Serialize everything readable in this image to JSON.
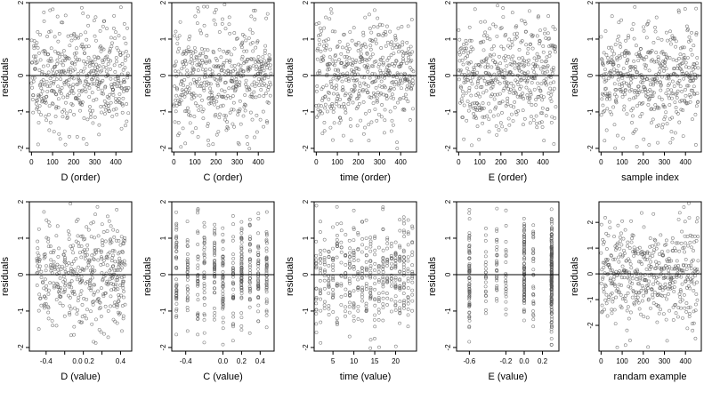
{
  "chart_data": [
    {
      "type": "scatter",
      "panel": "D (order)",
      "xlabel": "D (order)",
      "ylabel": "residuals",
      "xlim": [
        -10,
        475
      ],
      "ylim": [
        -2.1,
        2.0
      ],
      "xticks": [
        0,
        100,
        200,
        300,
        400
      ],
      "yticks": [
        -2,
        -1,
        0,
        1,
        2
      ],
      "hline": 0,
      "x_kind": "order",
      "n": 470,
      "seed": 11,
      "noise_sd": 0.75
    },
    {
      "type": "scatter",
      "panel": "C (order)",
      "xlabel": "C (order)",
      "ylabel": "residuals",
      "xlim": [
        -10,
        475
      ],
      "ylim": [
        -2.1,
        2.0
      ],
      "xticks": [
        0,
        100,
        200,
        300,
        400
      ],
      "yticks": [
        -2,
        -1,
        0,
        1,
        2
      ],
      "hline": 0,
      "x_kind": "order",
      "n": 470,
      "seed": 23,
      "noise_sd": 0.75
    },
    {
      "type": "scatter",
      "panel": "time (order)",
      "xlabel": "time (order)",
      "ylabel": "residuals",
      "xlim": [
        -10,
        475
      ],
      "ylim": [
        -2.1,
        2.0
      ],
      "xticks": [
        0,
        100,
        200,
        300,
        400
      ],
      "yticks": [
        -2,
        -1,
        0,
        1,
        2
      ],
      "hline": 0,
      "x_kind": "order",
      "n": 470,
      "seed": 37,
      "noise_sd": 0.75
    },
    {
      "type": "scatter",
      "panel": "E (order)",
      "xlabel": "E (order)",
      "ylabel": "residuals",
      "xlim": [
        -10,
        475
      ],
      "ylim": [
        -2.1,
        2.0
      ],
      "xticks": [
        0,
        100,
        200,
        300,
        400
      ],
      "yticks": [
        -2,
        -1,
        0,
        1,
        2
      ],
      "hline": 0,
      "x_kind": "order",
      "n": 470,
      "seed": 41,
      "noise_sd": 0.75
    },
    {
      "type": "scatter",
      "panel": "sample index",
      "xlabel": "sample index",
      "ylabel": "residuals",
      "xlim": [
        -10,
        475
      ],
      "ylim": [
        -2.1,
        2.0
      ],
      "xticks": [
        0,
        100,
        200,
        300,
        400
      ],
      "yticks": [
        -2,
        -1,
        0,
        1,
        2
      ],
      "hline": 0,
      "x_kind": "order",
      "n": 470,
      "seed": 53,
      "noise_sd": 0.75
    },
    {
      "type": "scatter",
      "panel": "D (value)",
      "xlabel": "D (value)",
      "ylabel": "residuals",
      "xlim": [
        -0.58,
        0.52
      ],
      "ylim": [
        -2.1,
        2.0
      ],
      "xticks": [
        -0.4,
        -0.2,
        0.0,
        0.2,
        0.4
      ],
      "xticklabels": [
        "-0.4",
        "",
        "0.0 0.2",
        "",
        "0.4"
      ],
      "yticks": [
        -2,
        -1,
        0,
        1,
        2
      ],
      "hline": 0,
      "x_kind": "continuous",
      "x_range": [
        -0.5,
        0.45
      ],
      "n": 420,
      "seed": 61,
      "noise_sd": 0.75
    },
    {
      "type": "scatter",
      "panel": "C (value)",
      "xlabel": "C (value)",
      "ylabel": "residuals",
      "xlim": [
        -0.55,
        0.55
      ],
      "ylim": [
        -2.1,
        2.0
      ],
      "xticks": [
        -0.4,
        0.0,
        0.2,
        0.4
      ],
      "xticklabels": [
        "-0.4",
        "0.0",
        "0.2",
        "0.4"
      ],
      "yticks": [
        -2,
        -1,
        0,
        1,
        2
      ],
      "hline": 0,
      "x_kind": "discrete",
      "x_levels": [
        -0.5,
        -0.38,
        -0.27,
        -0.2,
        -0.09,
        0.0,
        0.11,
        0.2,
        0.29,
        0.38,
        0.47
      ],
      "n": 450,
      "seed": 71,
      "noise_sd": 0.75
    },
    {
      "type": "scatter",
      "panel": "time (value)",
      "xlabel": "time (value)",
      "ylabel": "residuals",
      "xlim": [
        0.5,
        25.0
      ],
      "ylim": [
        -2.1,
        2.0
      ],
      "xticks": [
        5,
        10,
        15,
        20
      ],
      "yticks": [
        -2,
        -1,
        0,
        1,
        2
      ],
      "hline": 0,
      "x_kind": "discrete",
      "x_levels": [
        1,
        2,
        3,
        4,
        5,
        6,
        7,
        8,
        9,
        10,
        11,
        12,
        13,
        14,
        15,
        16,
        17,
        18,
        19,
        20,
        21,
        22,
        23,
        24
      ],
      "n": 450,
      "seed": 83,
      "noise_sd": 0.75
    },
    {
      "type": "scatter",
      "panel": "E (value)",
      "xlabel": "E (value)",
      "ylabel": "residuals",
      "xlim": [
        -0.74,
        0.38
      ],
      "ylim": [
        -2.1,
        2.0
      ],
      "xticks": [
        -0.6,
        -0.2,
        0.0,
        0.2
      ],
      "xticklabels": [
        "-0.6",
        "-0.2",
        "0.0",
        "0.2"
      ],
      "yticks": [
        -2,
        -1,
        0,
        1,
        2
      ],
      "hline": 0,
      "x_kind": "discrete",
      "x_levels": [
        -0.6,
        -0.42,
        -0.3,
        -0.2,
        0.0,
        0.1,
        0.3
      ],
      "x_weights": [
        3,
        1,
        1,
        1,
        3,
        1,
        6
      ],
      "n": 440,
      "seed": 97,
      "noise_sd": 0.75
    },
    {
      "type": "scatter",
      "panel": "randam example",
      "xlabel": "randam example",
      "ylabel": "residuals",
      "xlim": [
        -10,
        475
      ],
      "ylim": [
        -3.0,
        2.8
      ],
      "xticks": [
        0,
        100,
        200,
        300,
        400
      ],
      "yticks": [
        -2,
        -1,
        0,
        1,
        2
      ],
      "hline": 0,
      "x_kind": "order",
      "n": 470,
      "seed": 109,
      "noise_sd": 1.0
    }
  ]
}
